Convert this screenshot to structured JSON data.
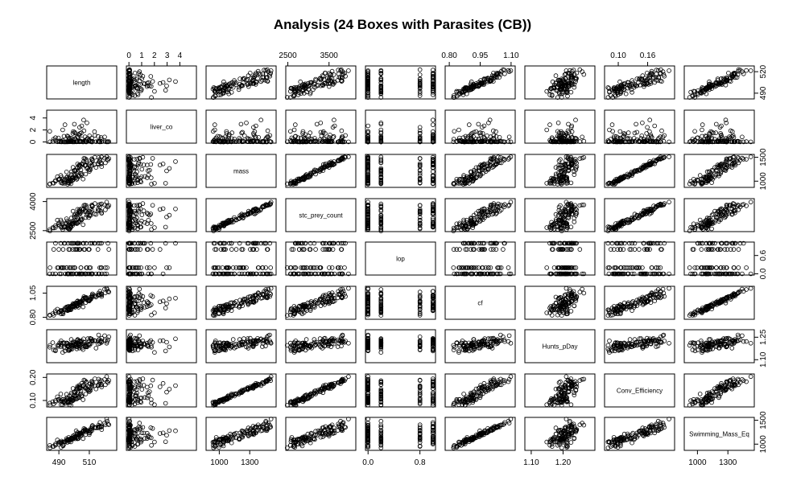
{
  "chart_data": {
    "type": "scatter",
    "title": "Analysis (24 Boxes with Parasites (CB))",
    "n_points": 120,
    "variables": [
      {
        "name": "length",
        "range": [
          482,
          528
        ],
        "ticks": [
          490,
          510
        ],
        "tick_labels": [
          "490",
          "510"
        ],
        "tick_side": "bottom"
      },
      {
        "name": "liver_co",
        "range": [
          -0.2,
          5.3
        ],
        "ticks": [
          0,
          1,
          2,
          3,
          4
        ],
        "tick_labels": [
          "0",
          "1",
          "2",
          "3",
          "4"
        ],
        "tick_side": "top"
      },
      {
        "name": "mass",
        "range": [
          870,
          1560
        ],
        "ticks": [
          1000,
          1300
        ],
        "tick_labels": [
          "1000",
          "1300"
        ],
        "tick_side": "bottom"
      },
      {
        "name": "stc_prey_count",
        "range": [
          2450,
          4150
        ],
        "ticks": [
          2500,
          3500
        ],
        "tick_labels": [
          "2500",
          "3500"
        ],
        "tick_side": "top"
      },
      {
        "name": "lop",
        "range": [
          -0.04,
          1.04
        ],
        "ticks": [
          0,
          0.8
        ],
        "tick_labels": [
          "0.0",
          "0.8"
        ],
        "tick_side": "bottom"
      },
      {
        "name": "cf",
        "range": [
          0.78,
          1.12
        ],
        "ticks": [
          0.8,
          0.95,
          1.1
        ],
        "tick_labels": [
          "0.80",
          "0.95",
          "1.10"
        ],
        "tick_side": "top"
      },
      {
        "name": "Hunts_pDay",
        "range": [
          1.08,
          1.3
        ],
        "ticks": [
          1.1,
          1.2
        ],
        "tick_labels": [
          "1.10",
          "1.20"
        ],
        "tick_side": "bottom"
      },
      {
        "name": "Conv_Efficiency",
        "range": [
          0.072,
          0.215
        ],
        "ticks": [
          0.1,
          0.16
        ],
        "tick_labels": [
          "0.10",
          "0.16"
        ],
        "tick_side": "top"
      },
      {
        "name": "Swimming_Mass_Eq",
        "range": [
          870,
          1560
        ],
        "ticks": [
          1000,
          1300
        ],
        "tick_labels": [
          "1000",
          "1300"
        ],
        "tick_side": "bottom"
      }
    ],
    "y_axes": [
      {
        "name": "length",
        "ticks": [
          490,
          520
        ],
        "tick_labels": [
          "490",
          "520"
        ],
        "side": "right"
      },
      {
        "name": "liver_co",
        "ticks": [
          0,
          2,
          4
        ],
        "tick_labels": [
          "0",
          "2",
          "4"
        ],
        "side": "left"
      },
      {
        "name": "mass",
        "ticks": [
          1000,
          1500
        ],
        "tick_labels": [
          "1000",
          "1500"
        ],
        "side": "right"
      },
      {
        "name": "stc_prey_count",
        "ticks": [
          2500,
          4000
        ],
        "tick_labels": [
          "2500",
          "4000"
        ],
        "side": "left"
      },
      {
        "name": "lop",
        "ticks": [
          0,
          0.6
        ],
        "tick_labels": [
          "0.0",
          "0.6"
        ],
        "side": "right"
      },
      {
        "name": "cf",
        "ticks": [
          0.8,
          1.05
        ],
        "tick_labels": [
          "0.80",
          "1.05"
        ],
        "side": "left"
      },
      {
        "name": "Hunts_pDay",
        "ticks": [
          1.1,
          1.25
        ],
        "tick_labels": [
          "1.10",
          "1.25"
        ],
        "side": "right"
      },
      {
        "name": "Conv_Efficiency",
        "ticks": [
          0.1,
          0.2
        ],
        "tick_labels": [
          "0.10",
          "0.20"
        ],
        "side": "left"
      },
      {
        "name": "Swimming_Mass_Eq",
        "ticks": [
          1000,
          1500
        ],
        "tick_labels": [
          "1000",
          "1500"
        ],
        "side": "right"
      }
    ],
    "marker": "open-circle",
    "grid": false,
    "legend": "none"
  }
}
